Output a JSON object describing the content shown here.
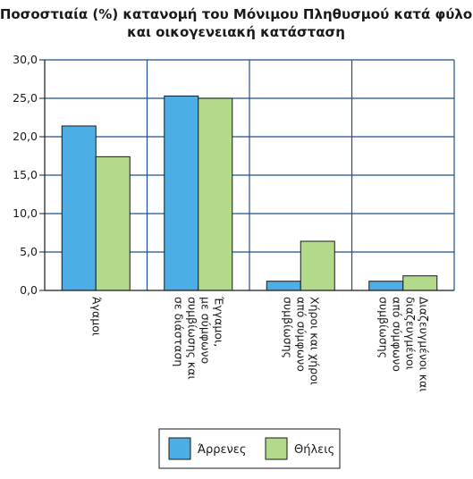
{
  "colors": {
    "male": "#4daee6",
    "female": "#b3d98a",
    "axis": "#1a1a1a",
    "frame": "#1f4f8f"
  },
  "chart_data": {
    "type": "bar",
    "title_lines": [
      "Ποσοστιαία (%) κατανομή του Μόνιμου Πληθυσμού κατά φύλο",
      "και οικογενειακή κατάσταση"
    ],
    "categories": [
      [
        "Άγαμοι"
      ],
      [
        "Έγγαμοι,",
        "με σύμφωνο",
        "συμβίωσης και",
        "σε διάσταση"
      ],
      [
        "Χήροι και χήροι",
        "από σύμφωνο",
        "συμβίωσης"
      ],
      [
        "Διαζευγμένοι και",
        "διαζευγμένοι",
        "από σύμφωνο",
        "συμβίωσης"
      ]
    ],
    "series": [
      {
        "name": "Άρρενες",
        "values": [
          21.4,
          25.3,
          1.2,
          1.2
        ]
      },
      {
        "name": "Θήλεις",
        "values": [
          17.4,
          25.0,
          6.4,
          1.9
        ]
      }
    ],
    "ylim": [
      0,
      30
    ],
    "yticks": [
      "0,0",
      "5,0",
      "10,0",
      "15,0",
      "20,0",
      "25,0",
      "30,0"
    ],
    "grid": true,
    "legend_position": "bottom"
  }
}
